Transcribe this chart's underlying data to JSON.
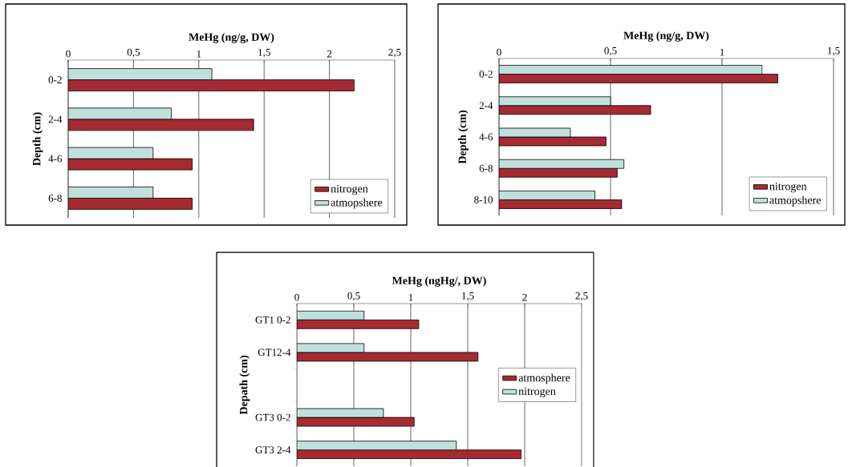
{
  "chart_data": [
    {
      "type": "bar",
      "orientation": "horizontal",
      "xlabel": "MeHg (ng/g, DW)",
      "ylabel": "Depth (cm)",
      "categories": [
        "0-2",
        "2-4",
        "4-6",
        "6-8"
      ],
      "series": [
        {
          "name": "nitrogen",
          "color": "#a52a32",
          "values": [
            2.19,
            1.42,
            0.95,
            0.95
          ]
        },
        {
          "name": "atmopshere",
          "color": "#c0e0dc",
          "values": [
            1.1,
            0.79,
            0.65,
            0.65
          ]
        }
      ],
      "xlim": [
        0,
        2.5
      ],
      "xticks": [
        0,
        {
          "value": 0.5,
          "label": "0,5"
        },
        1,
        {
          "value": 1.5,
          "label": "1,5"
        },
        2,
        {
          "value": 2.5,
          "label": "2,5"
        }
      ],
      "grid": "x",
      "legend": "bottom right"
    },
    {
      "type": "bar",
      "orientation": "horizontal",
      "xlabel": "MeHg (ng/g, DW)",
      "ylabel": "Depth (cm)",
      "categories": [
        "0-2",
        "2-4",
        "4-6",
        "6-8",
        "8-10"
      ],
      "series": [
        {
          "name": "nitrogen",
          "color": "#a52a32",
          "values": [
            1.25,
            0.68,
            0.48,
            0.53,
            0.55
          ]
        },
        {
          "name": "atmopshere",
          "color": "#c0e0dc",
          "values": [
            1.18,
            0.5,
            0.32,
            0.56,
            0.43
          ]
        }
      ],
      "xlim": [
        0,
        1.5
      ],
      "xticks": [
        0,
        {
          "value": 0.5,
          "label": "0,5"
        },
        1,
        {
          "value": 1.5,
          "label": "1,5"
        }
      ],
      "grid": "x",
      "legend": "bottom right"
    },
    {
      "type": "bar",
      "orientation": "horizontal",
      "xlabel": "MeHg (ngHg/, DW)",
      "ylabel": "Depath (cm)",
      "categories": [
        "GT1 0-2",
        "GT12-4",
        null,
        "GT3 0-2",
        "GT3 2-4"
      ],
      "series": [
        {
          "name": "atmosphere",
          "color": "#a52a32",
          "values": [
            1.07,
            1.59,
            null,
            1.03,
            1.97
          ]
        },
        {
          "name": "nitrogen",
          "color": "#c0e0dc",
          "values": [
            0.59,
            0.59,
            null,
            0.76,
            1.4
          ]
        }
      ],
      "xlim": [
        0,
        2.5
      ],
      "xticks": [
        0,
        {
          "value": 0.5,
          "label": "0,5"
        },
        1,
        {
          "value": 1.5,
          "label": "1,5"
        },
        2,
        {
          "value": 2.5,
          "label": "2,5"
        }
      ],
      "grid": "x",
      "legend": "right"
    }
  ]
}
